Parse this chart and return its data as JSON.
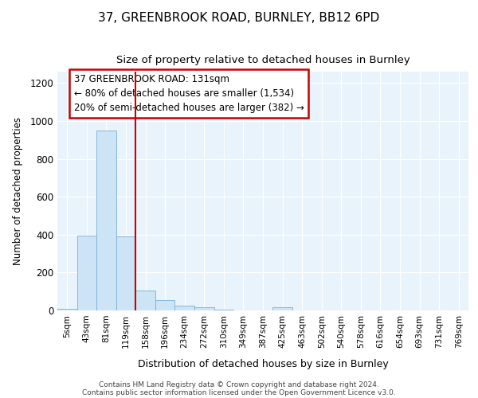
{
  "title1": "37, GREENBROOK ROAD, BURNLEY, BB12 6PD",
  "title2": "Size of property relative to detached houses in Burnley",
  "xlabel": "Distribution of detached houses by size in Burnley",
  "ylabel": "Number of detached properties",
  "bar_labels": [
    "5sqm",
    "43sqm",
    "81sqm",
    "119sqm",
    "158sqm",
    "196sqm",
    "234sqm",
    "272sqm",
    "310sqm",
    "349sqm",
    "387sqm",
    "425sqm",
    "463sqm",
    "502sqm",
    "540sqm",
    "578sqm",
    "616sqm",
    "654sqm",
    "693sqm",
    "731sqm",
    "769sqm"
  ],
  "bar_values": [
    10,
    393,
    950,
    390,
    105,
    53,
    25,
    15,
    5,
    0,
    0,
    15,
    0,
    0,
    0,
    0,
    0,
    0,
    0,
    0,
    0
  ],
  "bar_color": "#cce4f5",
  "bar_edge_color": "#7ab0d8",
  "annotation_text": "37 GREENBROOK ROAD: 131sqm\n← 80% of detached houses are smaller (1,534)\n20% of semi-detached houses are larger (382) →",
  "ylim": [
    0,
    1260
  ],
  "yticks": [
    0,
    200,
    400,
    600,
    800,
    1000,
    1200
  ],
  "background_color": "#ddeef8",
  "plot_bg_color": "#e8f3fb",
  "footer_text1": "Contains HM Land Registry data © Crown copyright and database right 2024.",
  "footer_text2": "Contains public sector information licensed under the Open Government Licence v3.0."
}
